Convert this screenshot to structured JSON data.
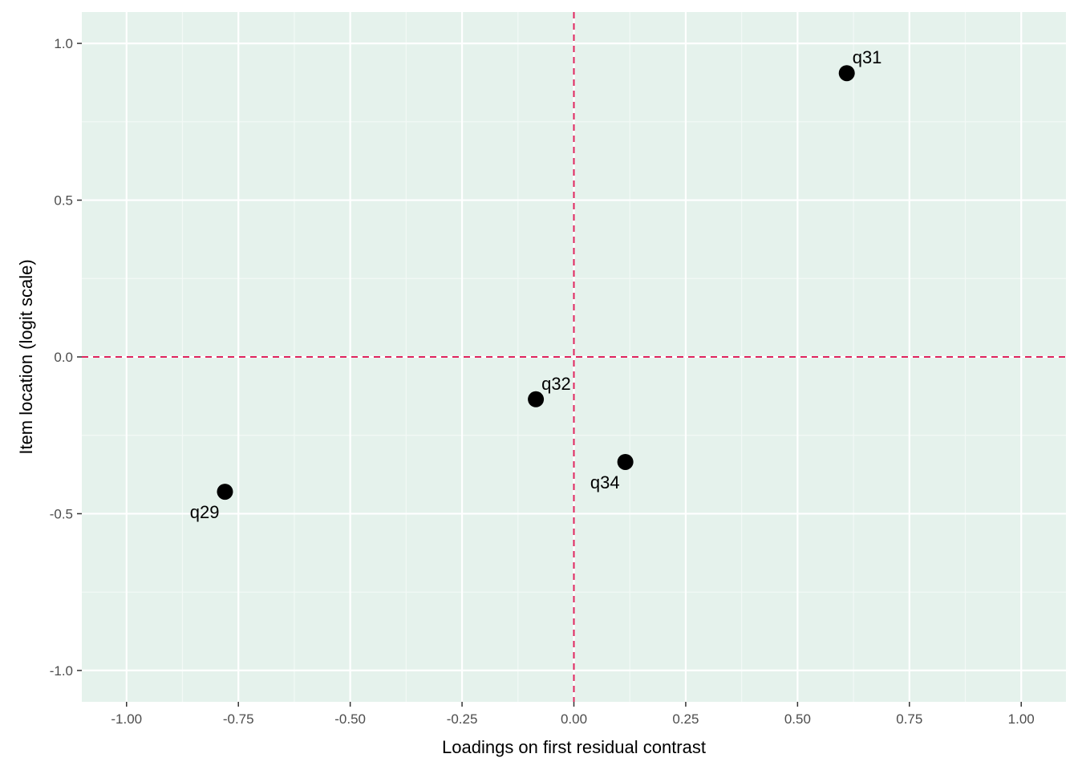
{
  "chart_data": {
    "type": "scatter",
    "title": "",
    "xlabel": "Loadings on first residual contrast",
    "ylabel": "Item location (logit scale)",
    "xlim": [
      -1.1,
      1.1
    ],
    "ylim": [
      -1.1,
      1.1
    ],
    "x_ticks": [
      -1.0,
      -0.75,
      -0.5,
      -0.25,
      0.0,
      0.25,
      0.5,
      0.75,
      1.0
    ],
    "x_tick_labels": [
      "-1.00",
      "-0.75",
      "-0.50",
      "-0.25",
      "0.00",
      "0.25",
      "0.50",
      "0.75",
      "1.00"
    ],
    "y_ticks": [
      -1.0,
      -0.5,
      0.0,
      0.5,
      1.0
    ],
    "y_tick_labels": [
      "-1.0",
      "-0.5",
      "0.0",
      "0.5",
      "1.0"
    ],
    "grid": true,
    "reference_lines": {
      "x": 0.0,
      "y": 0.0,
      "style": "dashed"
    },
    "points": [
      {
        "label": "q31",
        "x": 0.61,
        "y": 0.905,
        "label_side": "upper-right"
      },
      {
        "label": "q32",
        "x": -0.085,
        "y": -0.135,
        "label_side": "upper-right"
      },
      {
        "label": "q34",
        "x": 0.115,
        "y": -0.335,
        "label_side": "lower-left"
      },
      {
        "label": "q29",
        "x": -0.78,
        "y": -0.43,
        "label_side": "lower-left"
      }
    ]
  },
  "colors": {
    "panel_background": "#e5f2ec",
    "grid_major": "#ffffff",
    "grid_minor": "#f3f9f6",
    "reference_line": "#e0245e",
    "point": "#000000",
    "tick_text": "#4d4d4d",
    "tick_mark": "#333333"
  }
}
